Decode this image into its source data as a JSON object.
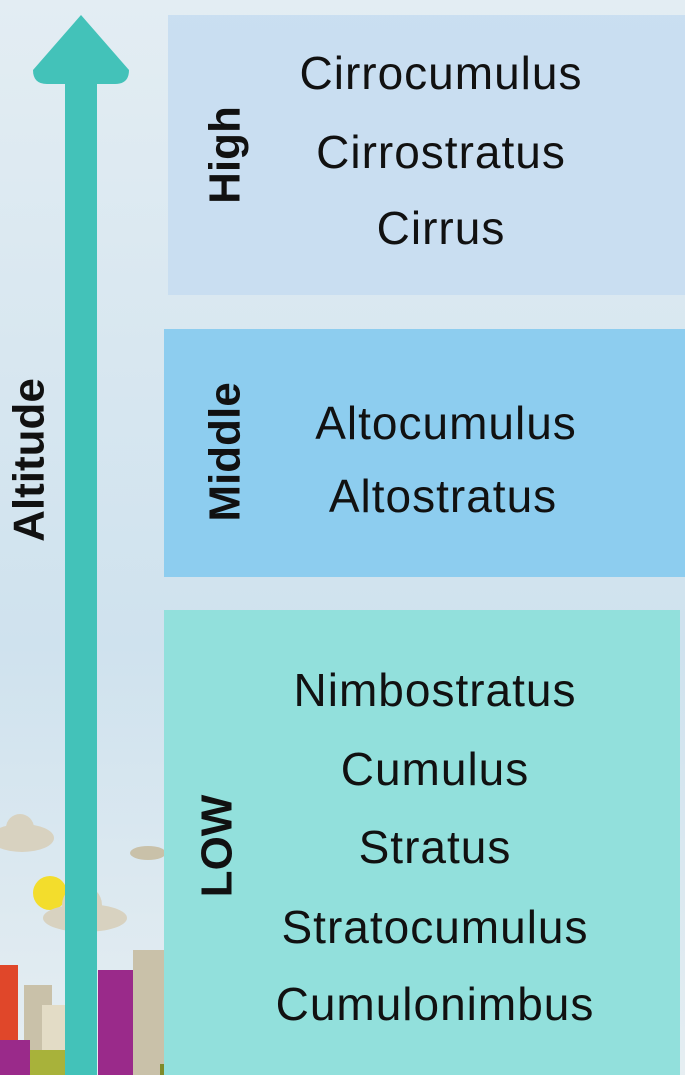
{
  "axis_label": "Altitude",
  "levels": [
    {
      "name": "High",
      "clouds": [
        "Cirrocumulus",
        "Cirrostratus",
        "Cirrus"
      ]
    },
    {
      "name": "Middle",
      "clouds": [
        "Altocumulus",
        "Altostratus"
      ]
    },
    {
      "name": "LOW",
      "clouds": [
        "Nimbostratus",
        "Cumulus",
        "Stratus",
        "Stratocumulus",
        "Cumulonimbus"
      ]
    }
  ]
}
